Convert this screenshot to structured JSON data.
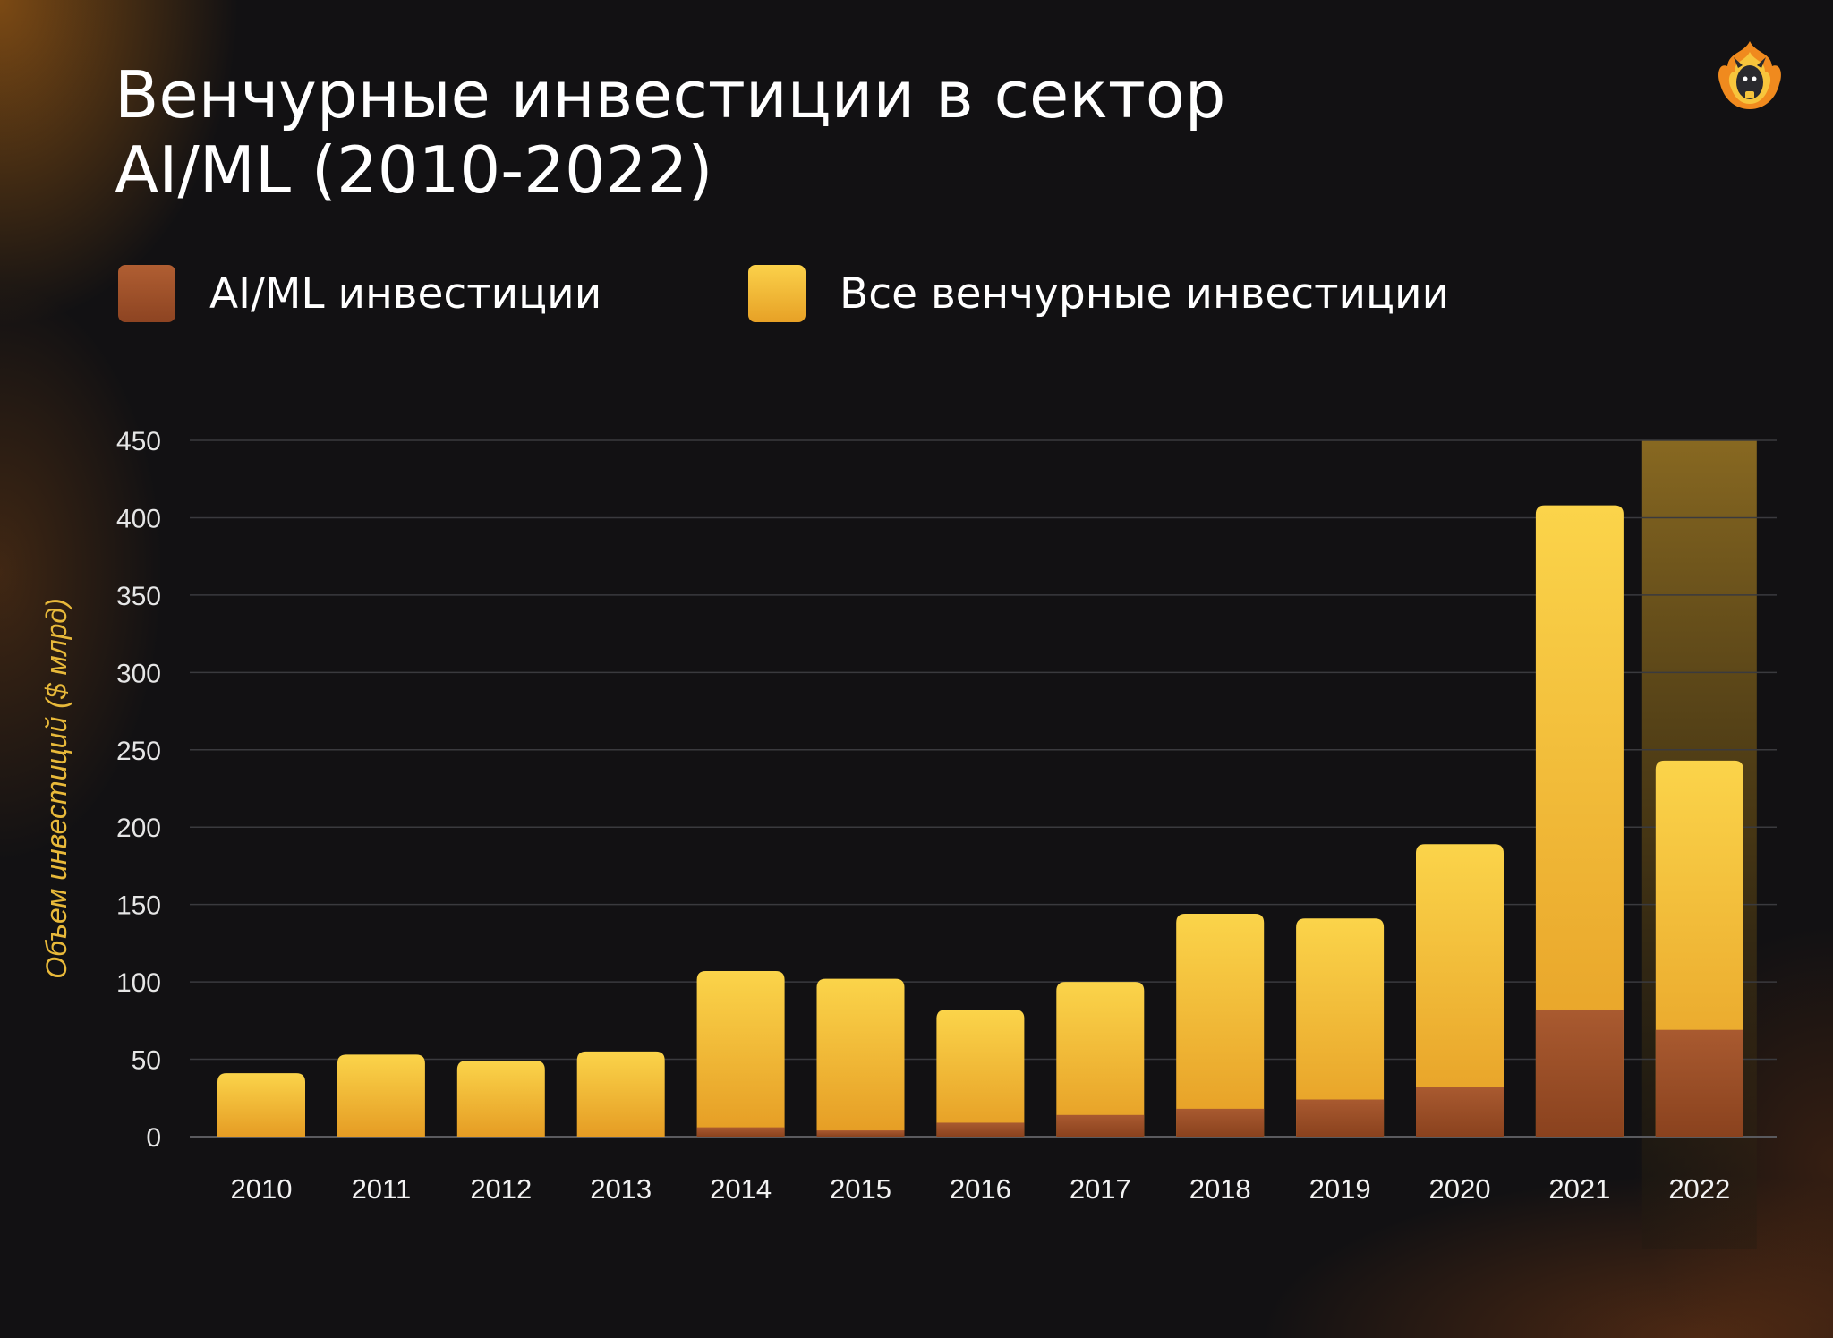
{
  "title_line1": "Венчурные инвестиции в сектор",
  "title_line2": "AI/ML (2010-2022)",
  "logo_icon": "flaming-goat-mascot-logo",
  "colors": {
    "background": "#121113",
    "ai_ml": "#a4532b",
    "all_venture": "#f5c23a",
    "axis_label": "#e8b93a",
    "highlight": "#8a6a1e"
  },
  "chart_data": {
    "type": "bar",
    "stacked_overlay": true,
    "categories": [
      "2010",
      "2011",
      "2012",
      "2013",
      "2014",
      "2015",
      "2016",
      "2017",
      "2018",
      "2019",
      "2020",
      "2021",
      "2022"
    ],
    "series": [
      {
        "name": "AI/ML инвестиции",
        "values": [
          0,
          0,
          0,
          0,
          6,
          4,
          9,
          14,
          18,
          24,
          32,
          82,
          69
        ]
      },
      {
        "name": "Все венчурные инвестиции",
        "values": [
          41,
          53,
          49,
          55,
          107,
          102,
          82,
          100,
          144,
          141,
          189,
          408,
          243
        ]
      }
    ],
    "highlight_category": "2022",
    "title": "Венчурные инвестиции в сектор AI/ML (2010-2022)",
    "xlabel": "",
    "ylabel": "Объем инвестиций ($ млрд)",
    "ylim": [
      0,
      450
    ],
    "yticks": [
      0,
      50,
      100,
      150,
      200,
      250,
      300,
      350,
      400,
      450
    ],
    "grid": true,
    "legend_position": "top-left"
  }
}
